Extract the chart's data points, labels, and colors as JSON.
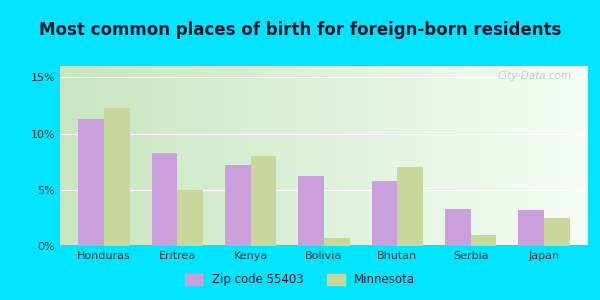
{
  "title": "Most common places of birth for foreign-born residents",
  "categories": [
    "Honduras",
    "Eritrea",
    "Kenya",
    "Bolivia",
    "Bhutan",
    "Serbia",
    "Japan"
  ],
  "zip_values": [
    11.3,
    8.3,
    7.2,
    6.2,
    5.8,
    3.3,
    3.2
  ],
  "mn_values": [
    12.3,
    5.0,
    8.0,
    0.7,
    7.0,
    1.0,
    2.5
  ],
  "zip_color": "#c9a0dc",
  "mn_color": "#c8d89a",
  "bar_width": 0.35,
  "ylim": [
    0,
    16
  ],
  "yticks": [
    0,
    5,
    10,
    15
  ],
  "ytick_labels": [
    "0%",
    "5%",
    "10%",
    "15%"
  ],
  "background_outer": "#00e5ff",
  "background_inner_left": "#c8e6c0",
  "background_inner_right": "#f5fdf5",
  "title_fontsize": 12,
  "tick_fontsize": 8,
  "legend_zip_label": "Zip code 55403",
  "legend_mn_label": "Minnesota",
  "watermark": "City-Data.com",
  "title_color": "#1a1a2e"
}
